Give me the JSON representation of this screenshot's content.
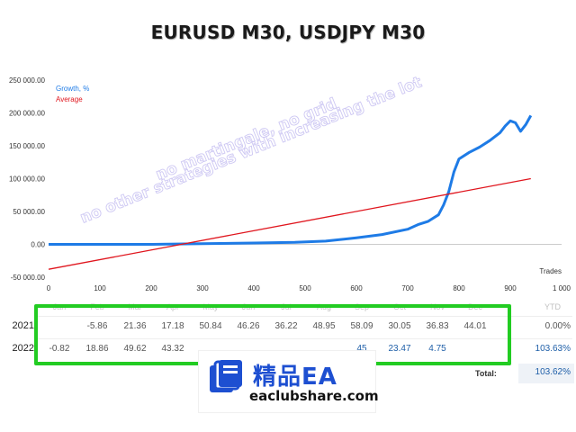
{
  "title": "EURUSD M30, USDJPY M30",
  "chart_data": {
    "type": "line",
    "xlabel": "Trades",
    "xlim": [
      0,
      1000
    ],
    "ylim": [
      -50000,
      250000
    ],
    "x_ticks": [
      "0",
      "100",
      "200",
      "300",
      "400",
      "500",
      "600",
      "700",
      "800",
      "900",
      "1 000"
    ],
    "y_ticks": [
      "250 000.00",
      "200 000.00",
      "150 000.00",
      "100 000.00",
      "50 000.00",
      "0.00",
      "-50 000.00"
    ],
    "y_tick_values": [
      250000,
      200000,
      150000,
      100000,
      50000,
      0,
      -50000
    ],
    "x_tick_values": [
      0,
      100,
      200,
      300,
      400,
      500,
      600,
      700,
      800,
      900,
      1000
    ],
    "grid": false,
    "legend_position": "top-left",
    "series": [
      {
        "name": "Growth, %",
        "color": "#1e7be6",
        "x": [
          0,
          100,
          200,
          300,
          400,
          480,
          540,
          600,
          650,
          700,
          720,
          740,
          760,
          770,
          780,
          790,
          800,
          820,
          840,
          860,
          880,
          890,
          900,
          910,
          920,
          930,
          940
        ],
        "y": [
          0,
          0,
          0,
          1000,
          2000,
          3000,
          5000,
          10000,
          15000,
          23000,
          30000,
          35000,
          45000,
          60000,
          80000,
          110000,
          130000,
          140000,
          148000,
          158000,
          170000,
          180000,
          188000,
          185000,
          172000,
          182000,
          196000
        ]
      },
      {
        "name": "Average",
        "color": "#e0161e",
        "x": [
          0,
          940
        ],
        "y": [
          -38000,
          100000
        ]
      }
    ]
  },
  "watermark": {
    "line1": "no martingale, no grid",
    "line2": "no other strategies with increasing the lot"
  },
  "stats": {
    "months": [
      "Jan",
      "Feb",
      "Mar",
      "Apr",
      "May",
      "Jun",
      "Jul",
      "Aug",
      "Sep",
      "Oct",
      "Nov",
      "Dec"
    ],
    "ytd_label": "YTD",
    "rows": [
      {
        "year": "2021",
        "values": [
          "",
          "-5.86",
          "21.36",
          "17.18",
          "50.84",
          "46.26",
          "36.22",
          "48.95",
          "58.09",
          "30.05",
          "36.83",
          "44.01"
        ],
        "ytd": "0.00%"
      },
      {
        "year": "2022",
        "values": [
          "-0.82",
          "18.86",
          "49.62",
          "43.32",
          "",
          "",
          "",
          "",
          "45",
          "23.47",
          "4.75",
          ""
        ],
        "ytd": "103.63%"
      }
    ],
    "total_label": "Total:",
    "total_value": "103.62%"
  },
  "logo": {
    "name": "精品EA",
    "url": "eaclubshare.com",
    "brand_color": "#1d4fd1"
  },
  "highlight_color": "#22cc22"
}
